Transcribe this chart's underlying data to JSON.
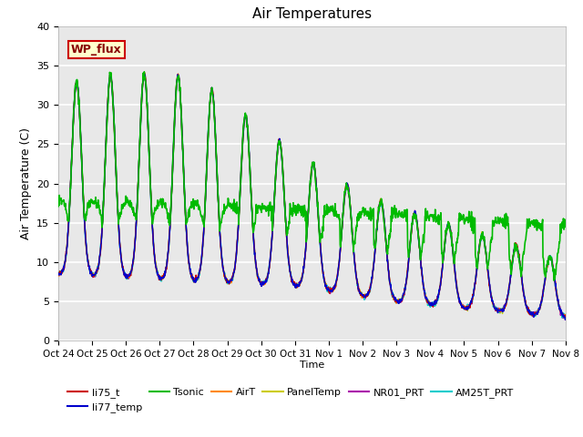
{
  "title": "Air Temperatures",
  "xlabel": "Time",
  "ylabel": "Air Temperature (C)",
  "ylim": [
    0,
    40
  ],
  "plot_bg_color": "#e8e8e8",
  "fig_bg_color": "#ffffff",
  "tick_labels": [
    "Oct 24",
    "Oct 25",
    "Oct 26",
    "Oct 27",
    "Oct 28",
    "Oct 29",
    "Oct 30",
    "Oct 31",
    "Nov 1",
    "Nov 2",
    "Nov 3",
    "Nov 4",
    "Nov 5",
    "Nov 6",
    "Nov 7",
    "Nov 8"
  ],
  "tick_positions": [
    0,
    24,
    48,
    72,
    96,
    120,
    144,
    168,
    192,
    216,
    240,
    264,
    288,
    312,
    336,
    360
  ],
  "series": {
    "li75_t": {
      "color": "#cc0000",
      "lw": 1.0,
      "zorder": 4
    },
    "li77_temp": {
      "color": "#0000cc",
      "lw": 1.0,
      "zorder": 4
    },
    "Tsonic": {
      "color": "#00bb00",
      "lw": 1.2,
      "zorder": 5
    },
    "AirT": {
      "color": "#ff8800",
      "lw": 1.0,
      "zorder": 4
    },
    "PanelTemp": {
      "color": "#cccc00",
      "lw": 1.0,
      "zorder": 3
    },
    "NR01_PRT": {
      "color": "#aa00aa",
      "lw": 1.0,
      "zorder": 3
    },
    "AM25T_PRT": {
      "color": "#00cccc",
      "lw": 1.2,
      "zorder": 3
    }
  },
  "wp_flux_box": {
    "text": "WP_flux",
    "facecolor": "#ffffcc",
    "edgecolor": "#cc0000",
    "text_color": "#880000"
  },
  "yticks": [
    0,
    5,
    10,
    15,
    20,
    25,
    30,
    35,
    40
  ]
}
